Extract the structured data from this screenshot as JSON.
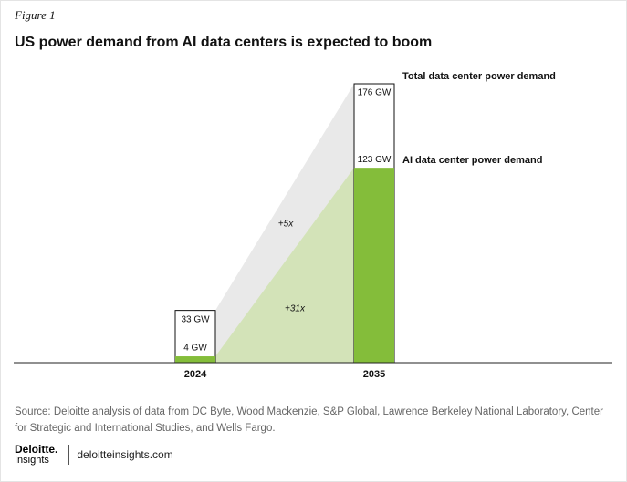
{
  "figure_label": "Figure 1",
  "chart_data": {
    "type": "bar",
    "title": "US power demand from AI data centers is expected to boom",
    "categories": [
      "2024",
      "2035"
    ],
    "series": [
      {
        "name": "Total data center power demand",
        "color": "#ffffff",
        "values": [
          33,
          176
        ],
        "value_labels": [
          "33 GW",
          "176 GW"
        ]
      },
      {
        "name": "AI data center power demand",
        "color": "#84bd3a",
        "values": [
          4,
          123
        ],
        "value_labels": [
          "4 GW",
          "123 GW"
        ]
      }
    ],
    "annotations": [
      "+5x",
      "+31x"
    ]
  },
  "source": "Source: Deloitte analysis of data from DC Byte, Wood Mackenzie, S&P Global, Lawrence Berkeley National Laboratory, Center for Strategic and International Studies, and Wells Fargo.",
  "footer": {
    "brand": "Deloitte.",
    "brand_sub": "Insights",
    "site": "deloitteinsights.com"
  }
}
